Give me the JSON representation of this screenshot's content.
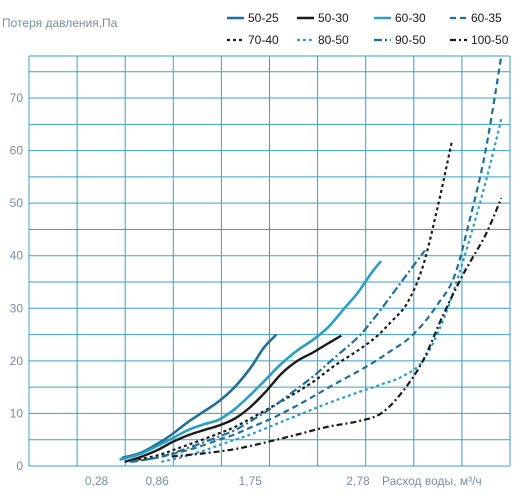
{
  "chart_data": {
    "type": "line",
    "ylabel": "Потеря давления,Па",
    "xlabel": "Расход воды, м³/ч",
    "ylim": [
      0,
      78
    ],
    "y_ticks": [
      "0",
      "10",
      "20",
      "30",
      "40",
      "50",
      "60",
      "70"
    ],
    "x_ticks": [
      "0,28",
      "0,86",
      "1,75",
      "2,78"
    ],
    "grid": true,
    "legend_position": "top-right",
    "series": [
      {
        "name": "50-25",
        "color": "#1f6f98",
        "dash": "solid",
        "width": 2.6,
        "x": [
          0.52,
          0.7,
          0.86,
          1.0,
          1.15,
          1.3,
          1.45,
          1.6,
          1.75,
          1.88,
          2.0
        ],
        "y": [
          1.5,
          2.5,
          4.2,
          6.0,
          8.3,
          10.3,
          12.3,
          15.0,
          18.6,
          22.5,
          25
        ]
      },
      {
        "name": "50-30",
        "color": "#1a1a1a",
        "dash": "solid",
        "width": 2.4,
        "x": [
          0.55,
          0.7,
          0.86,
          1.0,
          1.15,
          1.3,
          1.45,
          1.6,
          1.75,
          1.9,
          2.05,
          2.2,
          2.35,
          2.5,
          2.62
        ],
        "y": [
          0.8,
          1.7,
          3.0,
          4.5,
          5.8,
          6.8,
          7.7,
          9.0,
          11.2,
          14.2,
          17.6,
          20.0,
          21.6,
          23.4,
          24.8
        ]
      },
      {
        "name": "60-30",
        "color": "#2a9fc4",
        "dash": "solid",
        "width": 2.6,
        "x": [
          0.5,
          0.7,
          0.86,
          1.0,
          1.15,
          1.3,
          1.45,
          1.6,
          1.75,
          1.9,
          2.05,
          2.2,
          2.35,
          2.5,
          2.65,
          2.78,
          2.9,
          3.0
        ],
        "y": [
          1.2,
          2.3,
          3.8,
          5.2,
          6.8,
          7.9,
          8.8,
          10.8,
          13.5,
          16.5,
          19.5,
          22.0,
          24.0,
          26.5,
          30.0,
          33.0,
          36.5,
          39.0
        ]
      },
      {
        "name": "60-35",
        "color": "#1f6f98",
        "dash": "6,4",
        "width": 2.2,
        "x": [
          0.62,
          0.86,
          1.05,
          1.25,
          1.45,
          1.6,
          1.75,
          1.95,
          2.15,
          2.35,
          2.55,
          2.78,
          2.95,
          3.1,
          3.25,
          3.4,
          3.55,
          3.7,
          3.85,
          4.0,
          4.15
        ],
        "y": [
          0.8,
          1.6,
          2.5,
          3.6,
          5.0,
          6.0,
          7.3,
          9.0,
          11.0,
          13.2,
          15.5,
          18.0,
          20.0,
          22.0,
          24.0,
          27.0,
          31.0,
          36.0,
          47.0,
          60.0,
          78.0
        ]
      },
      {
        "name": "70-40",
        "color": "#1a1a1a",
        "dash": "3,3",
        "width": 2.2,
        "x": [
          0.62,
          0.86,
          1.05,
          1.25,
          1.45,
          1.6,
          1.75,
          1.95,
          2.15,
          2.35,
          2.55,
          2.78,
          2.95,
          3.1,
          3.25,
          3.4,
          3.55,
          3.68
        ],
        "y": [
          1.0,
          2.0,
          3.3,
          4.7,
          6.2,
          7.4,
          9.0,
          11.2,
          13.5,
          16.0,
          19.0,
          22.0,
          24.5,
          27.5,
          31.0,
          38.0,
          50.0,
          62.0
        ]
      },
      {
        "name": "80-50",
        "color": "#2a9fc4",
        "dash": "3,3",
        "width": 2.2,
        "x": [
          0.9,
          1.1,
          1.3,
          1.5,
          1.75,
          2.0,
          2.25,
          2.5,
          2.78,
          3.0,
          3.2,
          3.4,
          3.6,
          3.8,
          4.0,
          4.15
        ],
        "y": [
          0.8,
          1.7,
          2.9,
          4.3,
          6.0,
          8.0,
          10.0,
          12.0,
          14.0,
          15.5,
          17.0,
          20.0,
          28.0,
          40.0,
          54.0,
          66.0
        ]
      },
      {
        "name": "90-50",
        "color": "#1f6f98",
        "dash": "8,3,2,3",
        "width": 2.2,
        "x": [
          0.6,
          0.86,
          1.05,
          1.25,
          1.45,
          1.6,
          1.75,
          1.95,
          2.15,
          2.35,
          2.55,
          2.78,
          2.95,
          3.1,
          3.25,
          3.42
        ],
        "y": [
          0.8,
          1.6,
          2.7,
          4.1,
          5.6,
          6.8,
          8.5,
          11.0,
          14.0,
          17.0,
          20.5,
          24.5,
          28.5,
          32.5,
          36.5,
          41.0
        ]
      },
      {
        "name": "100-50",
        "color": "#1a1a1a",
        "dash": "6,3,2,3",
        "width": 2.2,
        "x": [
          1.0,
          1.3,
          1.6,
          1.9,
          2.2,
          2.5,
          2.78,
          3.0,
          3.2,
          3.4,
          3.6,
          3.8,
          4.0,
          4.15
        ],
        "y": [
          1.8,
          2.4,
          3.2,
          4.5,
          6.0,
          7.5,
          8.5,
          10.0,
          14.0,
          20.0,
          29.0,
          37.0,
          44.0,
          51.0
        ]
      }
    ]
  }
}
